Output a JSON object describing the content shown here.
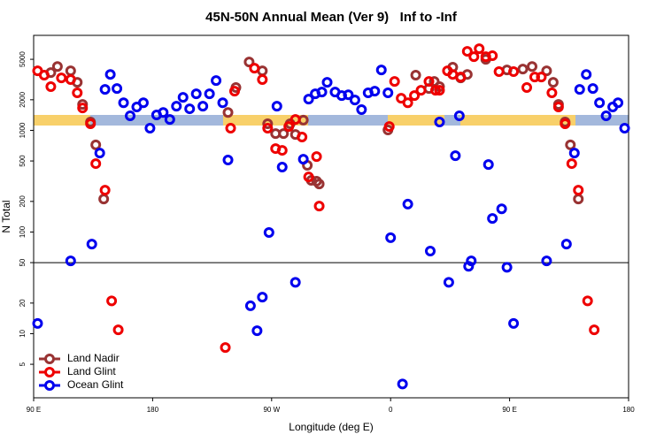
{
  "chart_data": {
    "type": "scatter",
    "title": "45N-50N Annual Mean (Ver 9)   Inf to -Inf",
    "x_label": "Longitude (deg E)",
    "y_label": "N Total",
    "xlim": [
      -270,
      180
    ],
    "xticks": [
      {
        "value": -270,
        "label": "90 E"
      },
      {
        "value": -180,
        "label": "180"
      },
      {
        "value": -90,
        "label": "90 W"
      },
      0,
      {
        "value": 90,
        "label": "90 E"
      },
      180
    ],
    "ylim": [
      2.34,
      8600
    ],
    "yticks": [
      5,
      10,
      20,
      50,
      100,
      200,
      500,
      1000,
      2000,
      5000
    ],
    "log_y": true,
    "reference_line": 50,
    "legend": "lower left",
    "series": [
      {
        "name": "Land Nadir",
        "color": "#993333",
        "x": [
          -257,
          -252,
          -242,
          -237,
          -233,
          -227,
          -223,
          -217,
          -123,
          -117,
          -107,
          -97,
          -93,
          -87,
          -81,
          -76,
          -72,
          -66,
          -63,
          -60,
          -56,
          -54,
          -2,
          19,
          29,
          33,
          37,
          47,
          53,
          58,
          72,
          88,
          100,
          107,
          118,
          123,
          127,
          132,
          136,
          142
        ],
        "values": [
          3700,
          4250,
          3850,
          2970,
          1800,
          1210,
          720,
          211,
          1500,
          2640,
          4700,
          3850,
          1160,
          930,
          930,
          1160,
          910,
          1260,
          453,
          322,
          316,
          297,
          1010,
          3490,
          2580,
          3030,
          2690,
          4180,
          3280,
          3550,
          5000,
          3930,
          4010,
          4250,
          3850,
          2970,
          1800,
          1210,
          720,
          211
        ]
      },
      {
        "name": "Land Glint",
        "color": "#ee0000",
        "x": [
          -267,
          -262,
          -257,
          -249,
          -242,
          -237,
          -233,
          -227,
          -223,
          -216,
          -211,
          -206,
          -125,
          -121,
          -118,
          -103,
          -97,
          -93,
          -87,
          -82,
          -77,
          -72,
          -67,
          -62,
          -56,
          -54,
          -1,
          3,
          8,
          13,
          18,
          23,
          29,
          34,
          37,
          43,
          47,
          53,
          58,
          63,
          67,
          72,
          77,
          82,
          93,
          103,
          109,
          114,
          122,
          127,
          132,
          137,
          142,
          149,
          154
        ],
        "values": [
          3850,
          3490,
          2690,
          3280,
          3160,
          2340,
          1660,
          1160,
          471,
          258,
          21,
          10.9,
          7.3,
          1050,
          2430,
          4090,
          3160,
          1050,
          662,
          636,
          1090,
          1280,
          860,
          348,
          552,
          180,
          1090,
          3030,
          2070,
          1870,
          2200,
          2480,
          3030,
          2480,
          2480,
          3850,
          3550,
          3350,
          5990,
          5310,
          6350,
          5310,
          5420,
          3780,
          3780,
          2640,
          3350,
          3350,
          2340,
          1700,
          1160,
          471,
          258,
          21,
          10.9
        ]
      },
      {
        "name": "Ocean Glint",
        "color": "#0000ee",
        "x": [
          -267,
          -242,
          -226,
          -220,
          -216,
          -212,
          -207,
          -202,
          -197,
          -192,
          -187,
          -182,
          -177,
          -172,
          -167,
          -162,
          -157,
          -152,
          -147,
          -142,
          -137,
          -132,
          -127,
          -123,
          -106,
          -101,
          -97,
          -92,
          -86,
          -82,
          -72,
          -66,
          -62,
          -57,
          -52,
          -48,
          -42,
          -37,
          -32,
          -27,
          -22,
          -17,
          -12,
          -7,
          -2,
          0,
          9,
          13,
          30,
          37,
          44,
          49,
          52,
          59,
          61,
          74,
          77,
          84,
          88,
          93,
          118,
          133,
          139,
          143,
          148,
          153,
          158,
          163,
          168,
          172,
          177
        ],
        "values": [
          12.6,
          52,
          76,
          598,
          2530,
          3550,
          2580,
          1870,
          1390,
          1700,
          1870,
          1050,
          1420,
          1500,
          1280,
          1730,
          2110,
          1630,
          2290,
          1730,
          2290,
          3090,
          1870,
          511,
          18.8,
          10.7,
          22.9,
          99,
          1730,
          435,
          32,
          520,
          2030,
          2290,
          2380,
          2970,
          2380,
          2200,
          2240,
          1990,
          1600,
          2340,
          2430,
          3930,
          2340,
          88,
          3.2,
          188,
          65,
          1210,
          32,
          563,
          1390,
          46,
          52,
          461,
          136,
          169,
          45,
          12.6,
          52,
          76,
          598,
          2530,
          3550,
          2580,
          1870,
          1390,
          1700,
          1870,
          1050
        ]
      }
    ]
  }
}
